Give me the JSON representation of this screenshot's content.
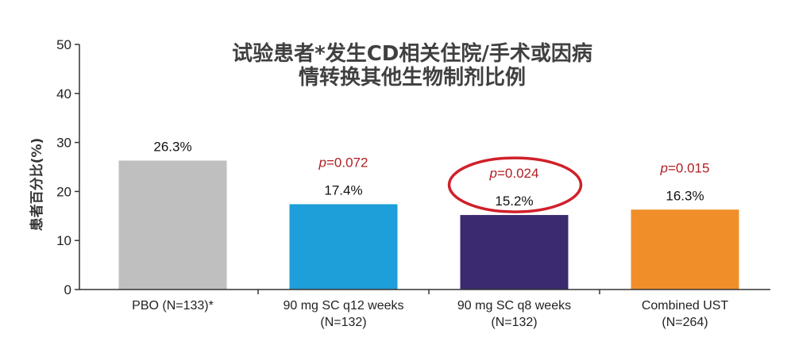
{
  "chart_data": {
    "type": "bar",
    "title": [
      "试验患者*发生CD相关住院/手术或因病",
      "情转换其他生物制剂比例"
    ],
    "ylabel": "患者百分比(%)",
    "xlabel": "",
    "ylim": [
      0,
      50
    ],
    "yticks": [
      0,
      10,
      20,
      30,
      40,
      50
    ],
    "categories": [
      [
        "PBO (N=133)*",
        ""
      ],
      [
        "90 mg SC q12 weeks",
        "(N=132)"
      ],
      [
        "90 mg SC q8 weeks",
        "(N=132)"
      ],
      [
        "Combined UST",
        "(N=264)"
      ]
    ],
    "values": [
      26.3,
      17.4,
      15.2,
      16.3
    ],
    "value_labels": [
      "26.3%",
      "17.4%",
      "15.2%",
      "16.3%"
    ],
    "p_values": [
      null,
      "=0.072",
      "=0.024",
      "=0.015"
    ],
    "p_prefix": "p",
    "bar_colors": [
      "#bfbfbf",
      "#1e9fd9",
      "#3c2a6e",
      "#f08f2a"
    ],
    "highlight_index": 2,
    "highlight_color": "#d0202a",
    "grid": false
  }
}
